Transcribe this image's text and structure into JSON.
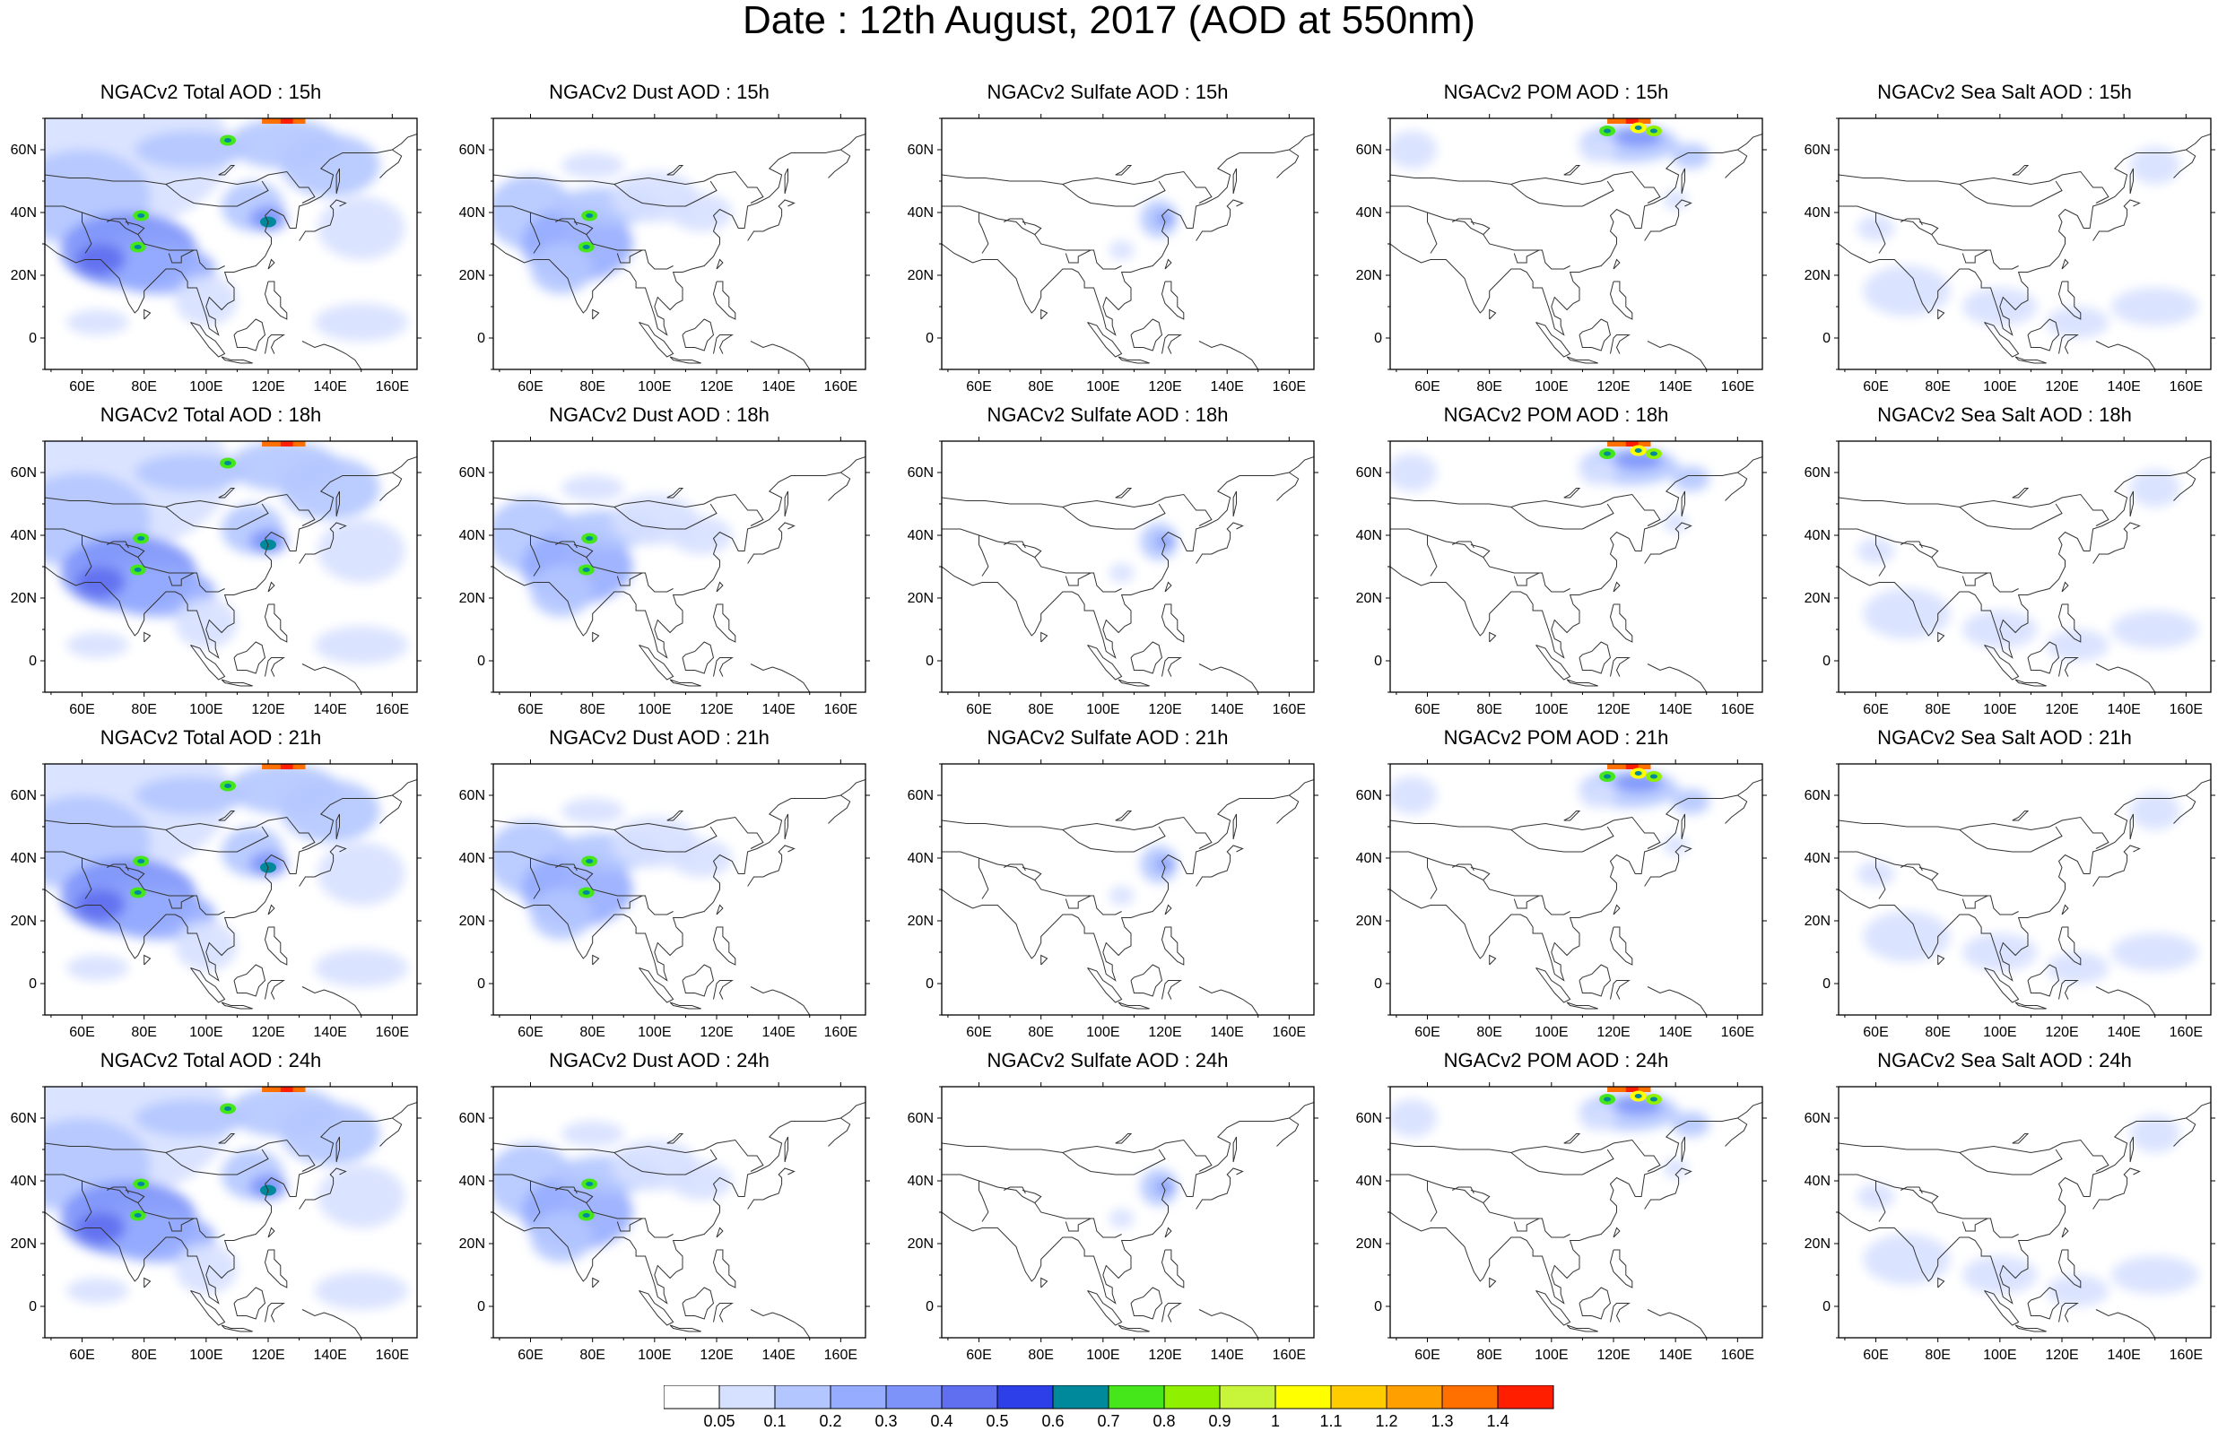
{
  "title": "Date : 12th August, 2017 (AOD at 550nm)",
  "lat_ticks": [
    "60N",
    "40N",
    "20N",
    "0"
  ],
  "lon_ticks": [
    "60E",
    "80E",
    "100E",
    "120E",
    "140E",
    "160E"
  ],
  "rows": [
    {
      "panels": [
        {
          "title": "NGACv2 Total AOD : 15h",
          "species": "total"
        },
        {
          "title": "NGACv2 Dust AOD : 15h",
          "species": "dust"
        },
        {
          "title": "NGACv2 Sulfate AOD : 15h",
          "species": "sulfate"
        },
        {
          "title": "NGACv2 POM AOD : 15h",
          "species": "pom"
        },
        {
          "title": "NGACv2 Sea Salt AOD : 15h",
          "species": "seasalt"
        }
      ]
    },
    {
      "panels": [
        {
          "title": "NGACv2 Total AOD : 18h",
          "species": "total"
        },
        {
          "title": "NGACv2 Dust AOD : 18h",
          "species": "dust"
        },
        {
          "title": "NGACv2 Sulfate AOD : 18h",
          "species": "sulfate"
        },
        {
          "title": "NGACv2 POM AOD : 18h",
          "species": "pom"
        },
        {
          "title": "NGACv2 Sea Salt AOD : 18h",
          "species": "seasalt"
        }
      ]
    },
    {
      "panels": [
        {
          "title": "NGACv2 Total AOD : 21h",
          "species": "total"
        },
        {
          "title": "NGACv2 Dust AOD : 21h",
          "species": "dust"
        },
        {
          "title": "NGACv2 Sulfate AOD : 21h",
          "species": "sulfate"
        },
        {
          "title": "NGACv2 POM AOD : 21h",
          "species": "pom"
        },
        {
          "title": "NGACv2 Sea Salt AOD : 21h",
          "species": "seasalt"
        }
      ]
    },
    {
      "panels": [
        {
          "title": "NGACv2 Total AOD : 24h",
          "species": "total"
        },
        {
          "title": "NGACv2 Dust AOD : 24h",
          "species": "dust"
        },
        {
          "title": "NGACv2 Sulfate AOD : 24h",
          "species": "sulfate"
        },
        {
          "title": "NGACv2 POM AOD : 24h",
          "species": "pom"
        },
        {
          "title": "NGACv2 Sea Salt  AOD : 24h",
          "species": "seasalt"
        }
      ]
    }
  ],
  "colorbar": {
    "labels": [
      "0.05",
      "0.1",
      "0.2",
      "0.3",
      "0.4",
      "0.5",
      "0.6",
      "0.7",
      "0.8",
      "0.9",
      "1",
      "1.1",
      "1.2",
      "1.3",
      "1.4"
    ],
    "colors": [
      "#ffffff",
      "#d6e0ff",
      "#b4c6ff",
      "#96acff",
      "#7d93fa",
      "#5f6ff0",
      "#2c3fe8",
      "#00899a",
      "#45e61a",
      "#8ff000",
      "#c8f53a",
      "#ffff00",
      "#ffcc00",
      "#ffa000",
      "#ff7000",
      "#ff1e00"
    ]
  }
}
